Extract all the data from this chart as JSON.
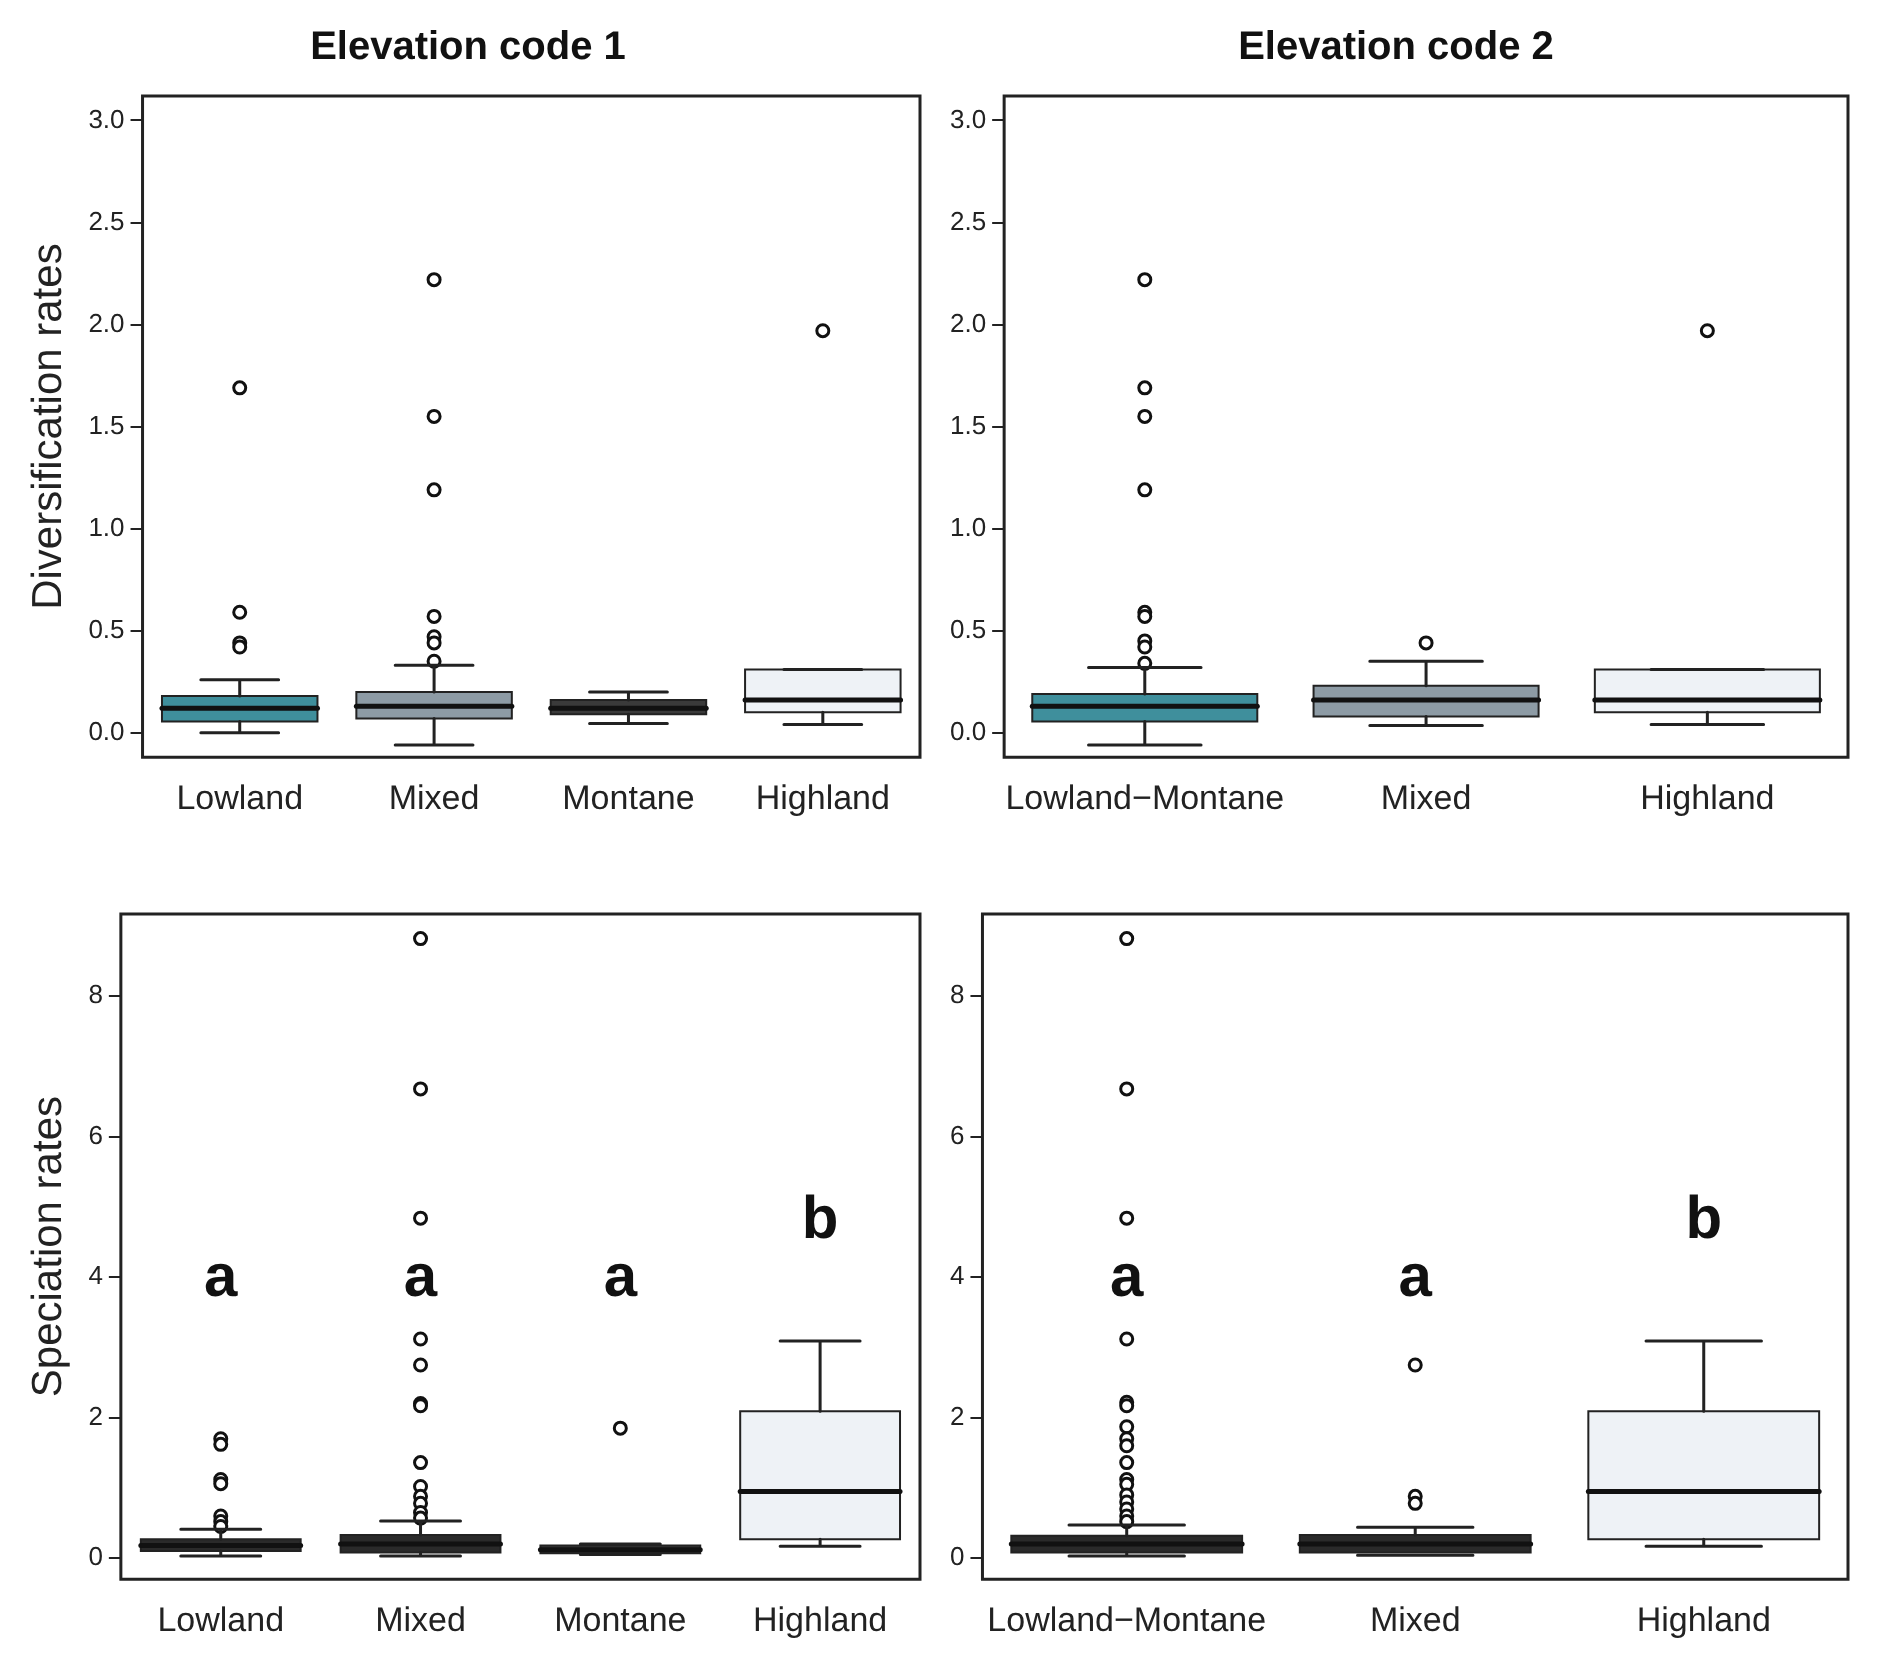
{
  "chart_data": [
    {
      "type": "box",
      "title": "Elevation code 1",
      "ylabel": "Diversification rates",
      "categories": [
        "Lowland",
        "Mixed",
        "Montane",
        "Highland"
      ],
      "colors": [
        "#3f8f9c",
        "#8d9ba5",
        "#3a3a3a",
        "#eef2f6"
      ],
      "ylim": [
        -0.12,
        3.12
      ],
      "yticks": [
        {
          "value": 0,
          "label": "0.0"
        },
        0.5,
        {
          "value": 1,
          "label": "1.0"
        },
        1.5,
        {
          "value": 2,
          "label": "2.0"
        },
        2.5,
        {
          "value": 3,
          "label": "3.0"
        }
      ],
      "grid": false,
      "legend": false,
      "boxes": [
        {
          "low": 0.0,
          "q1": 0.055,
          "median": 0.12,
          "q3": 0.18,
          "high": 0.26,
          "outliers": [
            1.69,
            0.59,
            0.44,
            0.42
          ]
        },
        {
          "low": -0.06,
          "q1": 0.07,
          "median": 0.13,
          "q3": 0.2,
          "high": 0.33,
          "outliers": [
            2.22,
            1.55,
            1.19,
            0.57,
            0.47,
            0.44,
            0.35
          ]
        },
        {
          "low": 0.045,
          "q1": 0.09,
          "median": 0.12,
          "q3": 0.16,
          "high": 0.2
        },
        {
          "low": 0.04,
          "q1": 0.1,
          "median": 0.16,
          "q3": 0.31,
          "high": 0.31,
          "outliers": [
            1.97
          ]
        }
      ]
    },
    {
      "type": "box",
      "title": "Elevation code 2",
      "categories": [
        "Lowland−Montane",
        "Mixed",
        "Highland"
      ],
      "colors": [
        "#3f8f9c",
        "#8d9ba5",
        "#eef2f6"
      ],
      "ylim": [
        -0.12,
        3.12
      ],
      "yticks": [
        {
          "value": 0,
          "label": "0.0"
        },
        0.5,
        {
          "value": 1,
          "label": "1.0"
        },
        1.5,
        {
          "value": 2,
          "label": "2.0"
        },
        2.5,
        {
          "value": 3,
          "label": "3.0"
        }
      ],
      "grid": false,
      "legend": false,
      "boxes": [
        {
          "low": -0.06,
          "q1": 0.055,
          "median": 0.13,
          "q3": 0.19,
          "high": 0.32,
          "outliers": [
            2.22,
            1.69,
            1.55,
            1.19,
            0.59,
            0.57,
            0.45,
            0.42,
            0.34
          ]
        },
        {
          "low": 0.035,
          "q1": 0.08,
          "median": 0.16,
          "q3": 0.23,
          "high": 0.35,
          "outliers": [
            0.44
          ]
        },
        {
          "low": 0.04,
          "q1": 0.1,
          "median": 0.16,
          "q3": 0.31,
          "high": 0.31,
          "outliers": [
            1.97
          ]
        }
      ]
    },
    {
      "type": "box",
      "ylabel": "Speciation rates",
      "categories": [
        "Lowland",
        "Mixed",
        "Montane",
        "Highland"
      ],
      "colors": [
        "#2a2a2a",
        "#2a2a2a",
        "#3a3a3a",
        "#eef2f6"
      ],
      "ylim": [
        -0.3,
        9.17
      ],
      "yticks": [
        0,
        2,
        4,
        6,
        8
      ],
      "grid": false,
      "legend": false,
      "boxes": [
        {
          "low": 0.03,
          "q1": 0.1,
          "median": 0.18,
          "q3": 0.27,
          "high": 0.41,
          "outliers": [
            1.7,
            1.62,
            1.12,
            1.06,
            0.6,
            0.52,
            0.45
          ]
        },
        {
          "low": 0.03,
          "q1": 0.08,
          "median": 0.2,
          "q3": 0.33,
          "high": 0.53,
          "outliers": [
            8.82,
            6.68,
            4.84,
            3.12,
            2.75,
            2.2,
            2.17,
            1.36,
            1.02,
            0.88,
            0.78,
            0.65,
            0.57
          ]
        },
        {
          "low": 0.05,
          "q1": 0.07,
          "median": 0.12,
          "q3": 0.18,
          "high": 0.2,
          "outliers": [
            1.85
          ]
        },
        {
          "low": 0.17,
          "q1": 0.27,
          "median": 0.95,
          "q3": 2.09,
          "high": 3.09
        }
      ],
      "annotations": [
        "a",
        "a",
        "a",
        "b"
      ]
    },
    {
      "type": "box",
      "categories": [
        "Lowland−Montane",
        "Mixed",
        "Highland"
      ],
      "colors": [
        "#2a2a2a",
        "#2a2a2a",
        "#eef2f6"
      ],
      "ylim": [
        -0.3,
        9.17
      ],
      "yticks": [
        0,
        2,
        4,
        6,
        8
      ],
      "grid": false,
      "legend": false,
      "boxes": [
        {
          "low": 0.03,
          "q1": 0.08,
          "median": 0.2,
          "q3": 0.32,
          "high": 0.47,
          "outliers": [
            8.82,
            6.68,
            4.84,
            3.12,
            2.22,
            2.17,
            1.87,
            1.7,
            1.6,
            1.36,
            1.12,
            1.05,
            0.9,
            0.8,
            0.7,
            0.6,
            0.52
          ]
        },
        {
          "low": 0.04,
          "q1": 0.08,
          "median": 0.2,
          "q3": 0.33,
          "high": 0.44,
          "outliers": [
            2.75,
            0.88,
            0.78
          ]
        },
        {
          "low": 0.17,
          "q1": 0.27,
          "median": 0.95,
          "q3": 2.09,
          "high": 3.09
        }
      ],
      "annotations": [
        "a",
        "a",
        "b"
      ]
    }
  ]
}
